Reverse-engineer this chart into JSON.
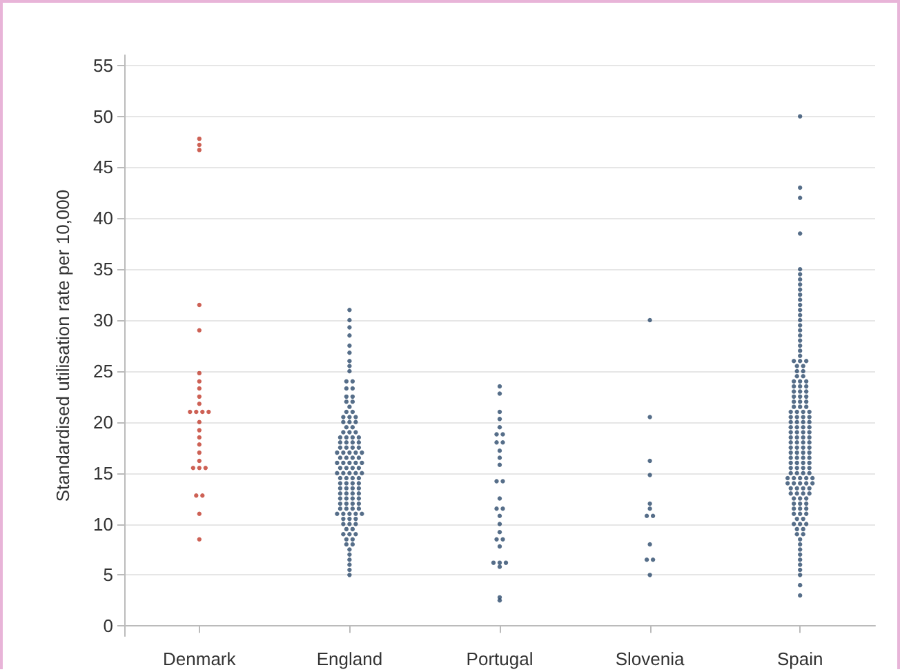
{
  "chart_data": {
    "type": "scatter",
    "ylabel": "Standardised utilisation rate per 10,000",
    "categories": [
      "Denmark",
      "England",
      "Portugal",
      "Slovenia",
      "Spain"
    ],
    "ylim": [
      -1,
      56
    ],
    "yticks": [
      0,
      5,
      10,
      15,
      20,
      25,
      30,
      35,
      40,
      45,
      50,
      55
    ],
    "grid": "y",
    "marker": "circle",
    "series": [
      {
        "color": "#c0392b",
        "x": [
          "Denmark",
          "Denmark",
          "Denmark",
          "Denmark",
          "Denmark",
          "Denmark",
          "Denmark",
          "Denmark",
          "Denmark",
          "Denmark",
          "Denmark",
          "Denmark",
          "Denmark",
          "Denmark",
          "Denmark",
          "Denmark",
          "Denmark",
          "Denmark",
          "Denmark",
          "Denmark",
          "Denmark",
          "Denmark",
          "Denmark",
          "Denmark",
          "Denmark",
          "Denmark",
          "Denmark"
        ],
        "values": [
          47.8,
          47.2,
          46.7,
          31.5,
          29,
          24.8,
          24,
          23.3,
          22.5,
          21.8,
          21,
          21,
          21,
          21,
          20,
          19.2,
          18.5,
          17.8,
          17,
          16.2,
          15.5,
          15.5,
          15.5,
          12.8,
          12.8,
          11,
          8.5
        ]
      },
      {
        "color": "#2c4a6b",
        "x": [
          "England",
          "England",
          "England",
          "England",
          "England",
          "England",
          "England",
          "England",
          "England",
          "England",
          "England",
          "England",
          "England",
          "England",
          "England",
          "England",
          "England",
          "England",
          "England",
          "England",
          "England",
          "England",
          "England",
          "England",
          "England",
          "England",
          "England",
          "England",
          "England",
          "England",
          "England",
          "England",
          "England",
          "England",
          "England",
          "England",
          "England",
          "England",
          "England",
          "England",
          "England",
          "England",
          "England",
          "England",
          "England",
          "England",
          "England",
          "England",
          "England",
          "England",
          "England",
          "England",
          "England",
          "England",
          "England",
          "England",
          "England",
          "England",
          "England",
          "England",
          "England",
          "England",
          "England",
          "England",
          "England",
          "England",
          "England",
          "England",
          "England",
          "England",
          "England",
          "England",
          "England",
          "England",
          "England",
          "England",
          "England",
          "England",
          "England",
          "England",
          "England",
          "England",
          "England",
          "England",
          "England",
          "England",
          "England",
          "England",
          "England",
          "England",
          "England",
          "England",
          "England",
          "England",
          "England",
          "England",
          "England",
          "England",
          "England",
          "England",
          "England",
          "England",
          "England",
          "England",
          "England",
          "England",
          "England",
          "England",
          "England",
          "England",
          "England",
          "England",
          "England",
          "England",
          "England",
          "England",
          "England",
          "England",
          "England",
          "England"
        ],
        "values": [
          31,
          30,
          29.3,
          28.5,
          27.5,
          26.8,
          26,
          25.5,
          25,
          24,
          24,
          23.3,
          23.3,
          22.5,
          22.5,
          22,
          22,
          21.5,
          21,
          21,
          20.5,
          20.5,
          20.5,
          20,
          20,
          20,
          19.5,
          19.5,
          19,
          19,
          19,
          18.5,
          18.5,
          18.5,
          18.5,
          18,
          18,
          18,
          18,
          17.5,
          17.5,
          17.5,
          17.5,
          17,
          17,
          17,
          17,
          17,
          16.5,
          16.5,
          16.5,
          16.5,
          16,
          16,
          16,
          16,
          16,
          15.5,
          15.5,
          15.5,
          15.5,
          15,
          15,
          15,
          15,
          15,
          14.5,
          14.5,
          14.5,
          14.5,
          14,
          14,
          14,
          14,
          13.5,
          13.5,
          13.5,
          13.5,
          13,
          13,
          13,
          13,
          12.5,
          12.5,
          12.5,
          12.5,
          12,
          12,
          12,
          12,
          11.5,
          11.5,
          11.5,
          11.5,
          11,
          11,
          11,
          11,
          11,
          10.5,
          10.5,
          10.5,
          10,
          10,
          10,
          9.5,
          9.5,
          9,
          9,
          9,
          8.5,
          8.5,
          8,
          8,
          7.5,
          7,
          6.5,
          6,
          5.5,
          5
        ]
      },
      {
        "color": "#2c4a6b",
        "x": [
          "Portugal",
          "Portugal",
          "Portugal",
          "Portugal",
          "Portugal",
          "Portugal",
          "Portugal",
          "Portugal",
          "Portugal",
          "Portugal",
          "Portugal",
          "Portugal",
          "Portugal",
          "Portugal",
          "Portugal",
          "Portugal",
          "Portugal",
          "Portugal",
          "Portugal",
          "Portugal",
          "Portugal",
          "Portugal",
          "Portugal",
          "Portugal",
          "Portugal",
          "Portugal",
          "Portugal",
          "Portugal",
          "Portugal"
        ],
        "values": [
          23.5,
          22.8,
          21,
          20.3,
          19.5,
          18.8,
          18.8,
          18,
          18,
          17.2,
          16.5,
          15.8,
          14.2,
          14.2,
          12.5,
          11.5,
          11.5,
          10.8,
          10,
          9.2,
          8.5,
          8.5,
          7.8,
          6.2,
          6.2,
          6.2,
          5.8,
          2.8,
          2.5
        ]
      },
      {
        "color": "#2c4a6b",
        "x": [
          "Slovenia",
          "Slovenia",
          "Slovenia",
          "Slovenia",
          "Slovenia",
          "Slovenia",
          "Slovenia",
          "Slovenia",
          "Slovenia",
          "Slovenia",
          "Slovenia",
          "Slovenia"
        ],
        "values": [
          30,
          20.5,
          16.2,
          14.8,
          12,
          11.5,
          10.8,
          10.8,
          8,
          6.5,
          6.5,
          5
        ]
      },
      {
        "color": "#2c4a6b",
        "x": [
          "Spain",
          "Spain",
          "Spain",
          "Spain",
          "Spain",
          "Spain",
          "Spain",
          "Spain",
          "Spain",
          "Spain",
          "Spain",
          "Spain",
          "Spain",
          "Spain",
          "Spain",
          "Spain",
          "Spain",
          "Spain",
          "Spain",
          "Spain",
          "Spain",
          "Spain",
          "Spain",
          "Spain",
          "Spain",
          "Spain",
          "Spain",
          "Spain",
          "Spain",
          "Spain",
          "Spain",
          "Spain",
          "Spain",
          "Spain",
          "Spain",
          "Spain",
          "Spain",
          "Spain",
          "Spain",
          "Spain",
          "Spain",
          "Spain",
          "Spain",
          "Spain",
          "Spain",
          "Spain",
          "Spain",
          "Spain",
          "Spain",
          "Spain",
          "Spain",
          "Spain",
          "Spain",
          "Spain",
          "Spain",
          "Spain",
          "Spain",
          "Spain",
          "Spain",
          "Spain",
          "Spain",
          "Spain",
          "Spain",
          "Spain",
          "Spain",
          "Spain",
          "Spain",
          "Spain",
          "Spain",
          "Spain",
          "Spain",
          "Spain",
          "Spain",
          "Spain",
          "Spain",
          "Spain",
          "Spain",
          "Spain",
          "Spain",
          "Spain",
          "Spain",
          "Spain",
          "Spain",
          "Spain",
          "Spain",
          "Spain",
          "Spain",
          "Spain",
          "Spain",
          "Spain",
          "Spain",
          "Spain",
          "Spain",
          "Spain",
          "Spain",
          "Spain",
          "Spain",
          "Spain",
          "Spain",
          "Spain",
          "Spain",
          "Spain",
          "Spain",
          "Spain",
          "Spain",
          "Spain",
          "Spain",
          "Spain",
          "Spain",
          "Spain",
          "Spain",
          "Spain",
          "Spain",
          "Spain",
          "Spain",
          "Spain",
          "Spain",
          "Spain",
          "Spain",
          "Spain",
          "Spain",
          "Spain",
          "Spain",
          "Spain",
          "Spain",
          "Spain",
          "Spain",
          "Spain",
          "Spain",
          "Spain",
          "Spain",
          "Spain",
          "Spain",
          "Spain",
          "Spain",
          "Spain",
          "Spain",
          "Spain",
          "Spain",
          "Spain",
          "Spain",
          "Spain",
          "Spain",
          "Spain",
          "Spain",
          "Spain",
          "Spain",
          "Spain",
          "Spain",
          "Spain"
        ],
        "values": [
          50,
          43,
          42,
          38.5,
          35,
          34.5,
          34,
          33.5,
          33,
          32.5,
          32,
          31.5,
          31,
          30.5,
          30,
          29.5,
          29,
          28.5,
          28,
          27.5,
          27,
          26.5,
          26,
          26,
          26,
          25.5,
          25.5,
          25,
          25,
          24.5,
          24.5,
          24,
          24,
          24,
          23.5,
          23.5,
          23.5,
          23,
          23,
          23,
          22.5,
          22.5,
          22.5,
          22,
          22,
          22,
          21.5,
          21.5,
          21.5,
          21,
          21,
          21,
          21,
          20.5,
          20.5,
          20.5,
          20.5,
          20,
          20,
          20,
          20,
          19.5,
          19.5,
          19.5,
          19.5,
          19,
          19,
          19,
          19,
          18.5,
          18.5,
          18.5,
          18.5,
          18,
          18,
          18,
          18,
          17.5,
          17.5,
          17.5,
          17.5,
          17,
          17,
          17,
          17,
          16.5,
          16.5,
          16.5,
          16.5,
          16,
          16,
          16,
          16,
          15.5,
          15.5,
          15.5,
          15.5,
          15,
          15,
          15,
          15,
          14.5,
          14.5,
          14.5,
          14.5,
          14.5,
          14,
          14,
          14,
          14,
          14,
          13.5,
          13.5,
          13.5,
          13.5,
          13,
          13,
          13,
          13,
          12.5,
          12.5,
          12.5,
          12,
          12,
          12,
          11.5,
          11.5,
          11.5,
          11,
          11,
          11,
          10.5,
          10.5,
          10,
          10,
          10,
          9.5,
          9.5,
          9,
          9,
          8.5,
          8,
          7.5,
          7,
          6.5,
          6,
          5.5,
          5,
          4,
          3
        ]
      }
    ]
  }
}
